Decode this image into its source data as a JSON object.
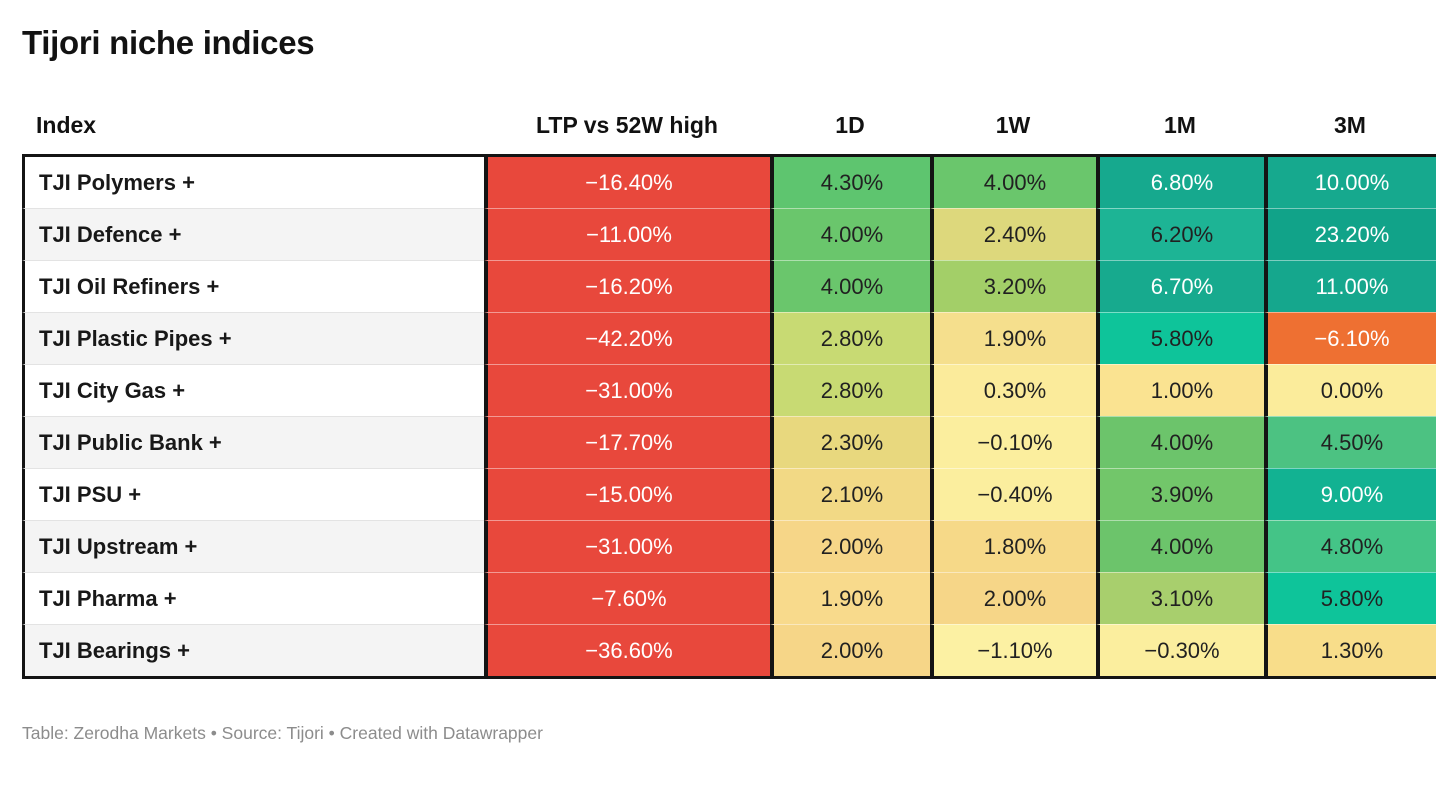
{
  "title": "Tijori niche indices",
  "footer": {
    "text": "Table: Zerodha Markets • Source: Tijori • Created with Datawrapper"
  },
  "palette": {
    "negative_red": "#e8483c",
    "negative_orange": "#ee7032",
    "strong_teal": "#16a98e",
    "mid_green": "#6ac66c",
    "yellow_green": "#c8da73",
    "pale_yellow": "#fbee9e",
    "header_border": "#141414",
    "zebra_gray": "#f4f4f4",
    "footer_gray": "#8c8c8c"
  },
  "table": {
    "columns": [
      {
        "key": "index",
        "label": "Index"
      },
      {
        "key": "ltp",
        "label": "LTP vs 52W high"
      },
      {
        "key": "d1",
        "label": "1D"
      },
      {
        "key": "w1",
        "label": "1W"
      },
      {
        "key": "m1",
        "label": "1M"
      },
      {
        "key": "m3",
        "label": "3M"
      }
    ],
    "rows": [
      {
        "index": "TJI Polymers +",
        "cells": [
          {
            "text": "−16.40%",
            "bg": "#e8483c",
            "fg": "#ffffff"
          },
          {
            "text": "4.30%",
            "bg": "#5ec56f",
            "fg": "#212121"
          },
          {
            "text": "4.00%",
            "bg": "#6ac66c",
            "fg": "#212121"
          },
          {
            "text": "6.80%",
            "bg": "#16a98e",
            "fg": "#ffffff"
          },
          {
            "text": "10.00%",
            "bg": "#16a98e",
            "fg": "#ffffff"
          }
        ]
      },
      {
        "index": "TJI Defence +",
        "cells": [
          {
            "text": "−11.00%",
            "bg": "#e8483c",
            "fg": "#ffffff"
          },
          {
            "text": "4.00%",
            "bg": "#6ac66c",
            "fg": "#212121"
          },
          {
            "text": "2.40%",
            "bg": "#ddd87c",
            "fg": "#212121"
          },
          {
            "text": "6.20%",
            "bg": "#1db495",
            "fg": "#212121"
          },
          {
            "text": "23.20%",
            "bg": "#11a389",
            "fg": "#ffffff"
          }
        ]
      },
      {
        "index": "TJI Oil Refiners +",
        "cells": [
          {
            "text": "−16.20%",
            "bg": "#e8483c",
            "fg": "#ffffff"
          },
          {
            "text": "4.00%",
            "bg": "#6ac66c",
            "fg": "#212121"
          },
          {
            "text": "3.20%",
            "bg": "#a3cf68",
            "fg": "#212121"
          },
          {
            "text": "6.70%",
            "bg": "#17aa8e",
            "fg": "#ffffff"
          },
          {
            "text": "11.00%",
            "bg": "#15a78d",
            "fg": "#ffffff"
          }
        ]
      },
      {
        "index": "TJI Plastic Pipes +",
        "cells": [
          {
            "text": "−42.20%",
            "bg": "#e8483c",
            "fg": "#ffffff"
          },
          {
            "text": "2.80%",
            "bg": "#c8da73",
            "fg": "#212121"
          },
          {
            "text": "1.90%",
            "bg": "#f5df8d",
            "fg": "#212121"
          },
          {
            "text": "5.80%",
            "bg": "#0ec49a",
            "fg": "#212121"
          },
          {
            "text": "−6.10%",
            "bg": "#ee7032",
            "fg": "#ffffff"
          }
        ]
      },
      {
        "index": "TJI City Gas +",
        "cells": [
          {
            "text": "−31.00%",
            "bg": "#e8483c",
            "fg": "#ffffff"
          },
          {
            "text": "2.80%",
            "bg": "#c8da73",
            "fg": "#212121"
          },
          {
            "text": "0.30%",
            "bg": "#fbeb9b",
            "fg": "#212121"
          },
          {
            "text": "1.00%",
            "bg": "#fae391",
            "fg": "#212121"
          },
          {
            "text": "0.00%",
            "bg": "#fbec9b",
            "fg": "#212121"
          }
        ]
      },
      {
        "index": "TJI Public Bank +",
        "cells": [
          {
            "text": "−17.70%",
            "bg": "#e8483c",
            "fg": "#ffffff"
          },
          {
            "text": "2.30%",
            "bg": "#e8d87e",
            "fg": "#212121"
          },
          {
            "text": "−0.10%",
            "bg": "#fbee9e",
            "fg": "#212121"
          },
          {
            "text": "4.00%",
            "bg": "#6cc46b",
            "fg": "#212121"
          },
          {
            "text": "4.50%",
            "bg": "#4cc282",
            "fg": "#212121"
          }
        ]
      },
      {
        "index": "TJI PSU +",
        "cells": [
          {
            "text": "−15.00%",
            "bg": "#e8483c",
            "fg": "#ffffff"
          },
          {
            "text": "2.10%",
            "bg": "#f2d985",
            "fg": "#212121"
          },
          {
            "text": "−0.40%",
            "bg": "#fbee9e",
            "fg": "#212121"
          },
          {
            "text": "3.90%",
            "bg": "#72c66a",
            "fg": "#212121"
          },
          {
            "text": "9.00%",
            "bg": "#12b292",
            "fg": "#ffffff"
          }
        ]
      },
      {
        "index": "TJI Upstream +",
        "cells": [
          {
            "text": "−31.00%",
            "bg": "#e8483c",
            "fg": "#ffffff"
          },
          {
            "text": "2.00%",
            "bg": "#f6d688",
            "fg": "#212121"
          },
          {
            "text": "1.80%",
            "bg": "#f6d988",
            "fg": "#212121"
          },
          {
            "text": "4.00%",
            "bg": "#6cc46b",
            "fg": "#212121"
          },
          {
            "text": "4.80%",
            "bg": "#44c487",
            "fg": "#212121"
          }
        ]
      },
      {
        "index": "TJI Pharma +",
        "cells": [
          {
            "text": "−7.60%",
            "bg": "#e8483c",
            "fg": "#ffffff"
          },
          {
            "text": "1.90%",
            "bg": "#f8da8c",
            "fg": "#212121"
          },
          {
            "text": "2.00%",
            "bg": "#f6d688",
            "fg": "#212121"
          },
          {
            "text": "3.10%",
            "bg": "#a8cf6d",
            "fg": "#212121"
          },
          {
            "text": "5.80%",
            "bg": "#0ec49a",
            "fg": "#212121"
          }
        ]
      },
      {
        "index": "TJI Bearings +",
        "cells": [
          {
            "text": "−36.60%",
            "bg": "#e8483c",
            "fg": "#ffffff"
          },
          {
            "text": "2.00%",
            "bg": "#f6d688",
            "fg": "#212121"
          },
          {
            "text": "−1.10%",
            "bg": "#fcf1a3",
            "fg": "#212121"
          },
          {
            "text": "−0.30%",
            "bg": "#fbee9e",
            "fg": "#212121"
          },
          {
            "text": "1.30%",
            "bg": "#f8dd8a",
            "fg": "#212121"
          }
        ]
      }
    ]
  },
  "chart_data": {
    "type": "table",
    "title": "Tijori niche indices",
    "columns": [
      "Index",
      "LTP vs 52W high",
      "1D",
      "1W",
      "1M",
      "3M"
    ],
    "rows": [
      [
        "TJI Polymers +",
        -16.4,
        4.3,
        4.0,
        6.8,
        10.0
      ],
      [
        "TJI Defence +",
        -11.0,
        4.0,
        2.4,
        6.2,
        23.2
      ],
      [
        "TJI Oil Refiners +",
        -16.2,
        4.0,
        3.2,
        6.7,
        11.0
      ],
      [
        "TJI Plastic Pipes +",
        -42.2,
        2.8,
        1.9,
        5.8,
        -6.1
      ],
      [
        "TJI City Gas +",
        -31.0,
        2.8,
        0.3,
        1.0,
        0.0
      ],
      [
        "TJI Public Bank +",
        -17.7,
        2.3,
        -0.1,
        4.0,
        4.5
      ],
      [
        "TJI PSU +",
        -15.0,
        2.1,
        -0.4,
        3.9,
        9.0
      ],
      [
        "TJI Upstream +",
        -31.0,
        2.0,
        1.8,
        4.0,
        4.8
      ],
      [
        "TJI Pharma +",
        -7.6,
        1.9,
        2.0,
        3.1,
        5.8
      ],
      [
        "TJI Bearings +",
        -36.6,
        2.0,
        -1.1,
        -0.3,
        1.3
      ]
    ],
    "units": "percent",
    "layout_hints": {
      "heatmap": "red (negative) → yellow (≈0) → green/teal (positive) on 1D/1W/1M/3M; LTP vs 52W high column solid red",
      "zebra_striping": true,
      "thick_black_rules": "below header, table bottom, column separators"
    }
  }
}
